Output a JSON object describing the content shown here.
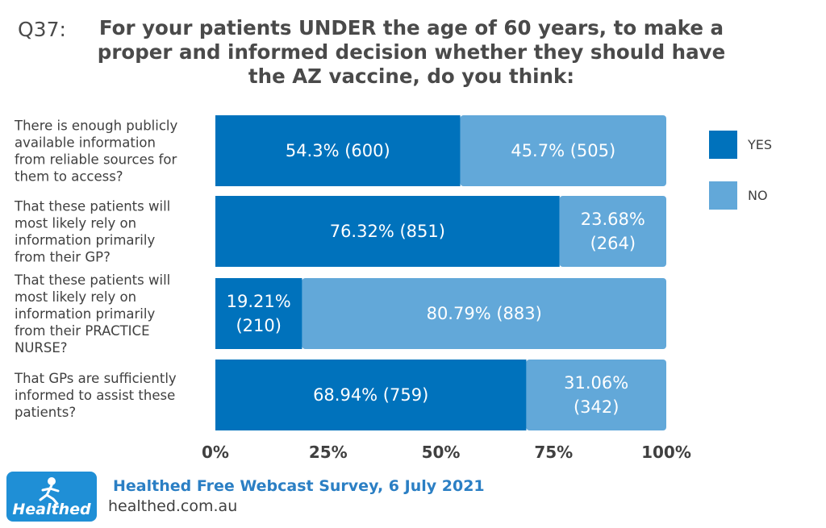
{
  "question": {
    "number": "Q37:",
    "title": "For your patients UNDER the age of 60 years, to make a proper and informed decision whether they should have the AZ vaccine, do you think:"
  },
  "chart_data": {
    "type": "bar",
    "orientation": "horizontal",
    "stacked": true,
    "percent_stacked": true,
    "categories": [
      [
        "There is enough publicly",
        "available information",
        "from reliable sources for",
        "them to access?"
      ],
      [
        "That these patients will",
        "most likely rely on",
        "information primarily",
        "from their GP?"
      ],
      [
        "That these patients will",
        "most likely rely on",
        "information primarily",
        "from their PRACTICE",
        "NURSE?"
      ],
      [
        "That GPs are sufficiently",
        "informed to assist these",
        "patients?"
      ]
    ],
    "series": [
      {
        "name": "YES",
        "color": "#0072bc",
        "values": [
          54.3,
          76.32,
          19.21,
          68.94
        ],
        "labels": [
          [
            "54.3% (600)"
          ],
          [
            "76.32% (851)"
          ],
          [
            "19.21%",
            "(210)"
          ],
          [
            "68.94% (759)"
          ]
        ]
      },
      {
        "name": "NO",
        "color": "#62a8d9",
        "values": [
          45.7,
          23.68,
          80.79,
          31.06
        ],
        "labels": [
          [
            "45.7% (505)"
          ],
          [
            "23.68%",
            "(264)"
          ],
          [
            "80.79% (883)"
          ],
          [
            "31.06%",
            "(342)"
          ]
        ]
      }
    ],
    "xlim": [
      0,
      100
    ],
    "xticks": [
      "0%",
      "25%",
      "50%",
      "75%",
      "100%"
    ],
    "legend_position": "right",
    "grid": false
  },
  "footer": {
    "logo_text": "Healthed",
    "survey": "Healthed Free Webcast Survey, 6 July 2021",
    "url": "healthed.com.au"
  }
}
